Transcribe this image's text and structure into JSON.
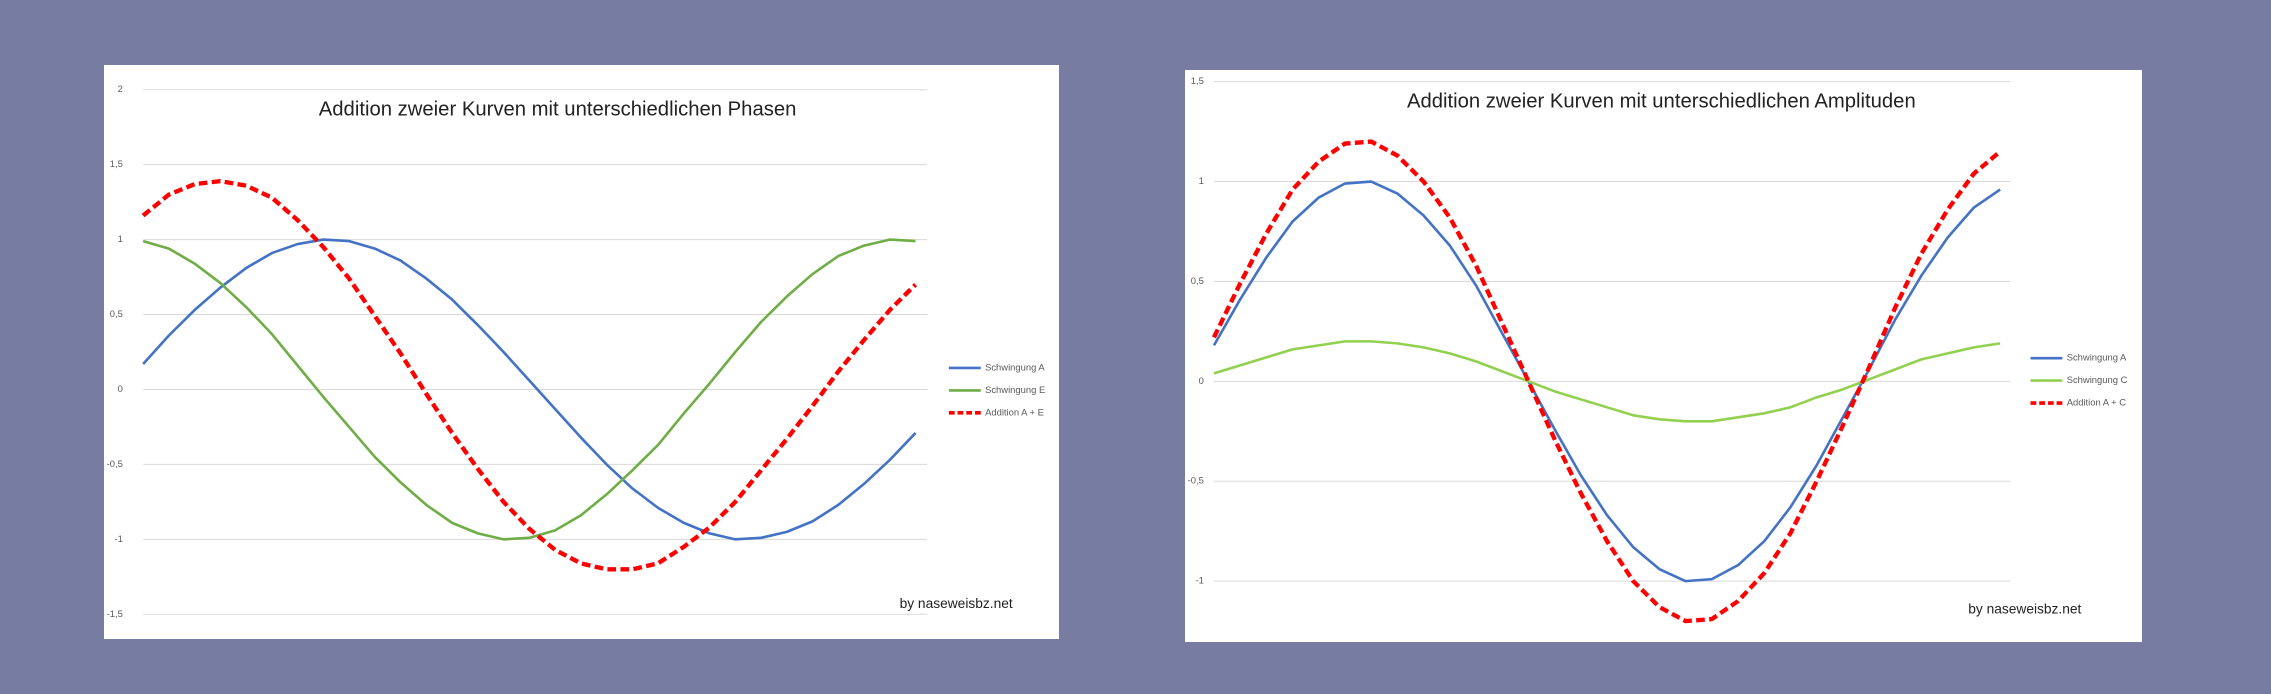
{
  "chart_data": [
    {
      "type": "line",
      "title": "Addition zweier Kurven mit unterschiedlichen Phasen",
      "annotation": "by naseweisbz.net",
      "ylim": [
        -1.5,
        2
      ],
      "yticks": [
        2,
        {
          "value": 1.5,
          "label": "1,5"
        },
        1,
        {
          "value": 0.5,
          "label": "0,5"
        },
        0,
        {
          "value": -0.5,
          "label": "-0,5"
        },
        -1,
        {
          "value": -1.5,
          "label": "-1,5"
        }
      ],
      "grid": true,
      "series": [
        {
          "name": "Schwingung A",
          "color": "#4472c4",
          "dashed": false,
          "values": [
            0.17,
            0.36,
            0.53,
            0.68,
            0.81,
            0.91,
            0.97,
            1.0,
            0.99,
            0.94,
            0.86,
            0.74,
            0.6,
            0.43,
            0.25,
            0.06,
            -0.13,
            -0.32,
            -0.5,
            -0.66,
            -0.79,
            -0.89,
            -0.96,
            -1.0,
            -0.99,
            -0.95,
            -0.88,
            -0.77,
            -0.63,
            -0.47,
            -0.29
          ]
        },
        {
          "name": "Schwingung E",
          "color": "#70ad47",
          "dashed": false,
          "values": [
            0.99,
            0.94,
            0.84,
            0.71,
            0.55,
            0.37,
            0.16,
            -0.05,
            -0.25,
            -0.45,
            -0.62,
            -0.77,
            -0.89,
            -0.96,
            -1.0,
            -0.99,
            -0.94,
            -0.84,
            -0.7,
            -0.54,
            -0.37,
            -0.16,
            0.04,
            0.25,
            0.45,
            0.62,
            0.77,
            0.89,
            0.96,
            1.0,
            0.99
          ]
        },
        {
          "name": "Addition A + E",
          "color": "#ff0000",
          "dashed": true,
          "values": [
            1.16,
            1.3,
            1.37,
            1.39,
            1.36,
            1.28,
            1.13,
            0.95,
            0.74,
            0.49,
            0.24,
            -0.03,
            -0.29,
            -0.53,
            -0.75,
            -0.93,
            -1.07,
            -1.16,
            -1.2,
            -1.2,
            -1.16,
            -1.05,
            -0.92,
            -0.75,
            -0.54,
            -0.33,
            -0.11,
            0.12,
            0.33,
            0.53,
            0.7
          ]
        }
      ]
    },
    {
      "type": "line",
      "title": "Addition zweier Kurven mit unterschiedlichen Amplituden",
      "annotation": "by naseweisbz.net",
      "ylim": [
        -1.25,
        1.5
      ],
      "yticks": [
        {
          "value": 1.5,
          "label": "1,5"
        },
        1,
        {
          "value": 0.5,
          "label": "0,5"
        },
        0,
        {
          "value": -0.5,
          "label": "-0,5"
        },
        -1
      ],
      "grid": true,
      "series": [
        {
          "name": "Schwingung A",
          "color": "#4472c4",
          "dashed": false,
          "values": [
            0.18,
            0.41,
            0.62,
            0.8,
            0.92,
            0.99,
            1.0,
            0.94,
            0.83,
            0.68,
            0.48,
            0.24,
            0.0,
            -0.24,
            -0.47,
            -0.67,
            -0.83,
            -0.94,
            -1.0,
            -0.99,
            -0.92,
            -0.8,
            -0.63,
            -0.42,
            -0.18,
            0.06,
            0.31,
            0.53,
            0.72,
            0.87,
            0.96
          ]
        },
        {
          "name": "Schwingung C",
          "color": "#92d050",
          "dashed": false,
          "values": [
            0.04,
            0.08,
            0.12,
            0.16,
            0.18,
            0.2,
            0.2,
            0.19,
            0.17,
            0.14,
            0.1,
            0.05,
            0.0,
            -0.05,
            -0.09,
            -0.13,
            -0.17,
            -0.19,
            -0.2,
            -0.2,
            -0.18,
            -0.16,
            -0.13,
            -0.08,
            -0.04,
            0.01,
            0.06,
            0.11,
            0.14,
            0.17,
            0.19
          ]
        },
        {
          "name": "Addition A + C",
          "color": "#ff0000",
          "dashed": true,
          "values": [
            0.22,
            0.49,
            0.74,
            0.96,
            1.1,
            1.19,
            1.2,
            1.13,
            1.0,
            0.82,
            0.58,
            0.29,
            0.0,
            -0.29,
            -0.56,
            -0.8,
            -1.0,
            -1.13,
            -1.2,
            -1.19,
            -1.1,
            -0.96,
            -0.76,
            -0.5,
            -0.22,
            0.07,
            0.37,
            0.64,
            0.86,
            1.04,
            1.15
          ]
        }
      ]
    }
  ]
}
